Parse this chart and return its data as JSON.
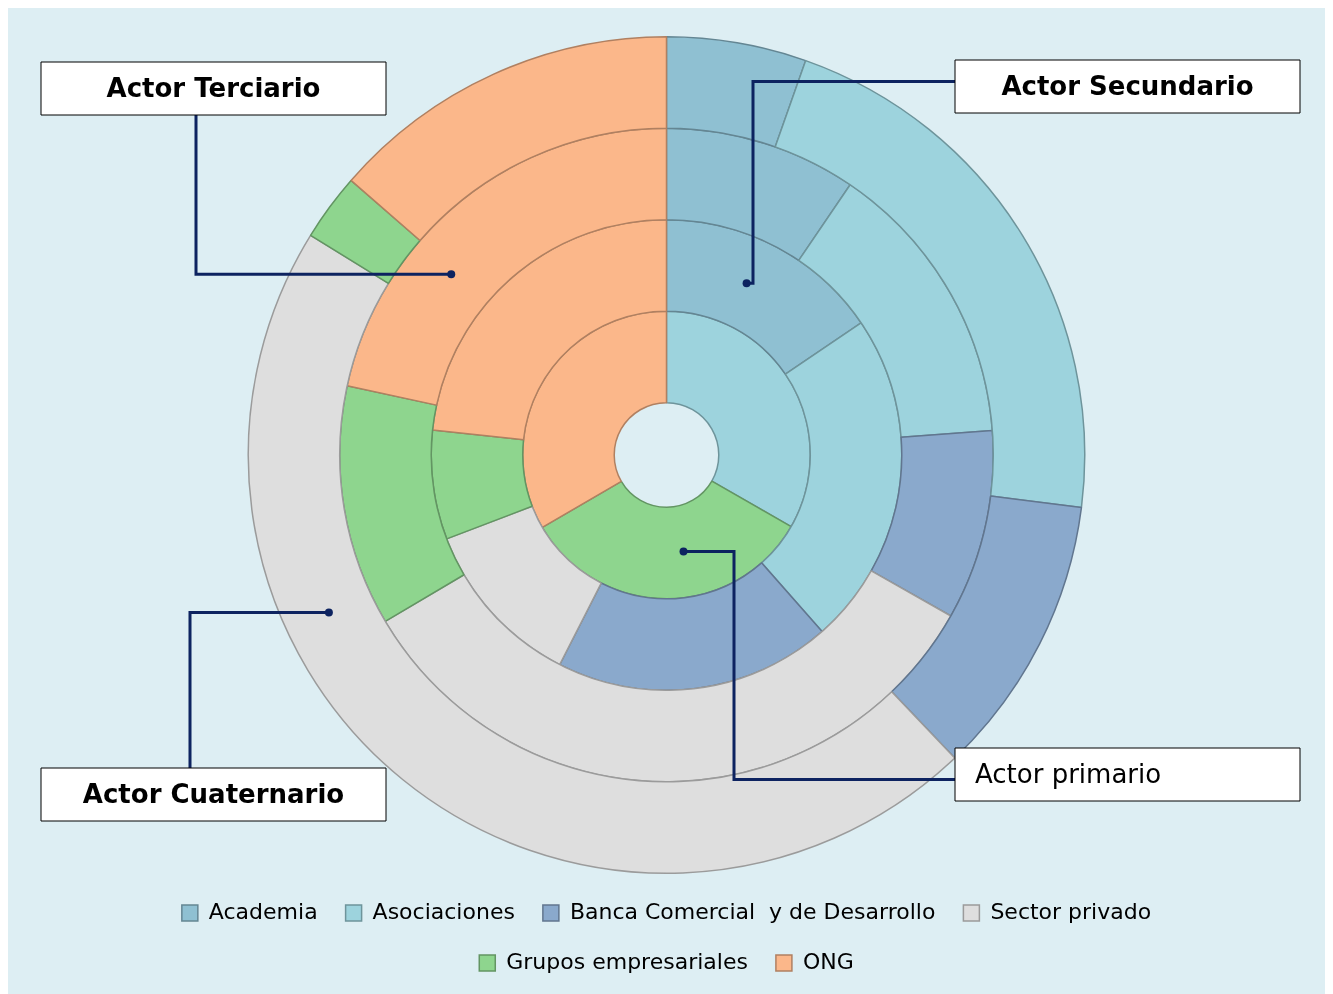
{
  "chart_data": {
    "type": "donut",
    "categories": [
      "Academia",
      "Asociaciones",
      "Banca Comercial  y de Desarrollo",
      "Sector privado",
      "Grupos empresariales",
      "ONG"
    ],
    "colors": [
      "#8fc0d2",
      "#9dd3dd",
      "#8aa9cc",
      "#dedede",
      "#8ed58e",
      "#fbb78a"
    ],
    "series": [
      {
        "values": [
          0,
          33.3,
          0,
          0,
          33.3,
          33.4
        ]
      },
      {
        "values": [
          15.5,
          23,
          19,
          11.7,
          7.5,
          23.3
        ]
      },
      {
        "values": [
          9.5,
          14.3,
          9.4,
          33.3,
          11.9,
          21.6
        ]
      },
      {
        "values": [
          5.4,
          21.6,
          10.9,
          45.9,
          2.6,
          13.6
        ]
      }
    ],
    "annotations": [
      "Actor primario",
      "Actor Secundario",
      "Actor Terciario",
      "Actor Cuaternario"
    ],
    "legend": "bottom"
  }
}
